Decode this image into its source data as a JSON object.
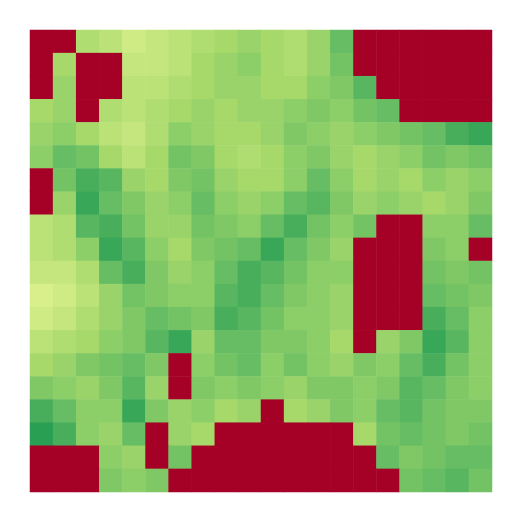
{
  "chart_data": {
    "type": "heatmap",
    "tick_labels": false,
    "color_range": [
      0,
      1
    ],
    "values": [
      [
        0,
        0,
        0.68,
        0.66,
        0.62,
        0.64,
        0.66,
        0.68,
        0.7,
        0.72,
        0.7,
        0.68,
        0.72,
        0.8,
        0,
        0,
        0,
        0,
        0,
        0
      ],
      [
        0,
        0.7,
        0,
        0,
        0.64,
        0.64,
        0.66,
        0.7,
        0.72,
        0.74,
        0.7,
        0.68,
        0.72,
        0.78,
        0,
        0,
        0,
        0,
        0,
        0
      ],
      [
        0,
        0.72,
        0,
        0,
        0.66,
        0.66,
        0.68,
        0.7,
        0.72,
        0.72,
        0.7,
        0.7,
        0.74,
        0.76,
        0.82,
        0,
        0,
        0,
        0,
        0
      ],
      [
        0.7,
        0.72,
        0,
        0.68,
        0.66,
        0.68,
        0.7,
        0.72,
        0.7,
        0.72,
        0.72,
        0.74,
        0.76,
        0.74,
        0.78,
        0.8,
        0,
        0,
        0,
        0
      ],
      [
        0.72,
        0.74,
        0.7,
        0.66,
        0.64,
        0.68,
        0.74,
        0.72,
        0.7,
        0.7,
        0.72,
        0.76,
        0.74,
        0.72,
        0.74,
        0.76,
        0.78,
        0.8,
        0.84,
        0.86
      ],
      [
        0.74,
        0.8,
        0.78,
        0.7,
        0.66,
        0.7,
        0.78,
        0.76,
        0.7,
        0.68,
        0.7,
        0.74,
        0.76,
        0.72,
        0.7,
        0.72,
        0.74,
        0.78,
        0.76,
        0.78
      ],
      [
        0,
        0.78,
        0.84,
        0.82,
        0.72,
        0.7,
        0.76,
        0.78,
        0.72,
        0.7,
        0.7,
        0.74,
        0.8,
        0.74,
        0.7,
        0.72,
        0.7,
        0.74,
        0.72,
        0.74
      ],
      [
        0,
        0.72,
        0.86,
        0.8,
        0.76,
        0.72,
        0.74,
        0.8,
        0.74,
        0.72,
        0.74,
        0.8,
        0.82,
        0.76,
        0.72,
        0.74,
        0.72,
        0.7,
        0.72,
        0.76
      ],
      [
        0.66,
        0.68,
        0.82,
        0.84,
        0.78,
        0.72,
        0.72,
        0.78,
        0.76,
        0.74,
        0.8,
        0.84,
        0.78,
        0.74,
        0.78,
        0,
        0,
        0.74,
        0.74,
        0.8
      ],
      [
        0.66,
        0.68,
        0.74,
        0.86,
        0.82,
        0.74,
        0.7,
        0.76,
        0.78,
        0.8,
        0.86,
        0.8,
        0.76,
        0.72,
        0,
        0,
        0,
        0.76,
        0.74,
        0
      ],
      [
        0.64,
        0.64,
        0.68,
        0.8,
        0.84,
        0.76,
        0.72,
        0.74,
        0.8,
        0.84,
        0.82,
        0.78,
        0.74,
        0.74,
        0,
        0,
        0,
        0.78,
        0.76,
        0.78
      ],
      [
        0.6,
        0.62,
        0.66,
        0.72,
        0.78,
        0.76,
        0.74,
        0.74,
        0.82,
        0.84,
        0.8,
        0.76,
        0.74,
        0.72,
        0,
        0,
        0,
        0.8,
        0.78,
        0.76
      ],
      [
        0.62,
        0.64,
        0.68,
        0.72,
        0.76,
        0.8,
        0.78,
        0.76,
        0.84,
        0.82,
        0.78,
        0.74,
        0.74,
        0.72,
        0,
        0,
        0,
        0.84,
        0.8,
        0.74
      ],
      [
        0.66,
        0.68,
        0.7,
        0.74,
        0.76,
        0.82,
        0.86,
        0.72,
        0.8,
        0.8,
        0.76,
        0.76,
        0.74,
        0.7,
        0,
        0.72,
        0.76,
        0.86,
        0.82,
        0.74
      ],
      [
        0.7,
        0.72,
        0.76,
        0.78,
        0.8,
        0.76,
        0,
        0.74,
        0.78,
        0.8,
        0.74,
        0.78,
        0.74,
        0.72,
        0.76,
        0.74,
        0.8,
        0.84,
        0.78,
        0.74
      ],
      [
        0.76,
        0.74,
        0.72,
        0.76,
        0.82,
        0.72,
        0,
        0.76,
        0.74,
        0.76,
        0.74,
        0.72,
        0.76,
        0.76,
        0.74,
        0.76,
        0.82,
        0.8,
        0.76,
        0.74
      ],
      [
        0.84,
        0.8,
        0.74,
        0.74,
        0.86,
        0.76,
        0.72,
        0.74,
        0.7,
        0.72,
        0,
        0.7,
        0.72,
        0.76,
        0.74,
        0.8,
        0.82,
        0.78,
        0.76,
        0.76
      ],
      [
        0.88,
        0.84,
        0.74,
        0.72,
        0.8,
        0,
        0.72,
        0.7,
        0,
        0,
        0,
        0,
        0,
        0,
        0.7,
        0.78,
        0.8,
        0.78,
        0.76,
        0.78
      ],
      [
        0,
        0,
        0,
        0.74,
        0.72,
        0,
        0.78,
        0,
        0,
        0,
        0,
        0,
        0,
        0,
        0,
        0.8,
        0.76,
        0.78,
        0.8,
        0.8
      ],
      [
        0,
        0,
        0,
        0.76,
        0.74,
        0.76,
        0,
        0,
        0,
        0,
        0,
        0,
        0,
        0,
        0,
        0,
        0.78,
        0.8,
        0.82,
        0.78
      ]
    ]
  }
}
